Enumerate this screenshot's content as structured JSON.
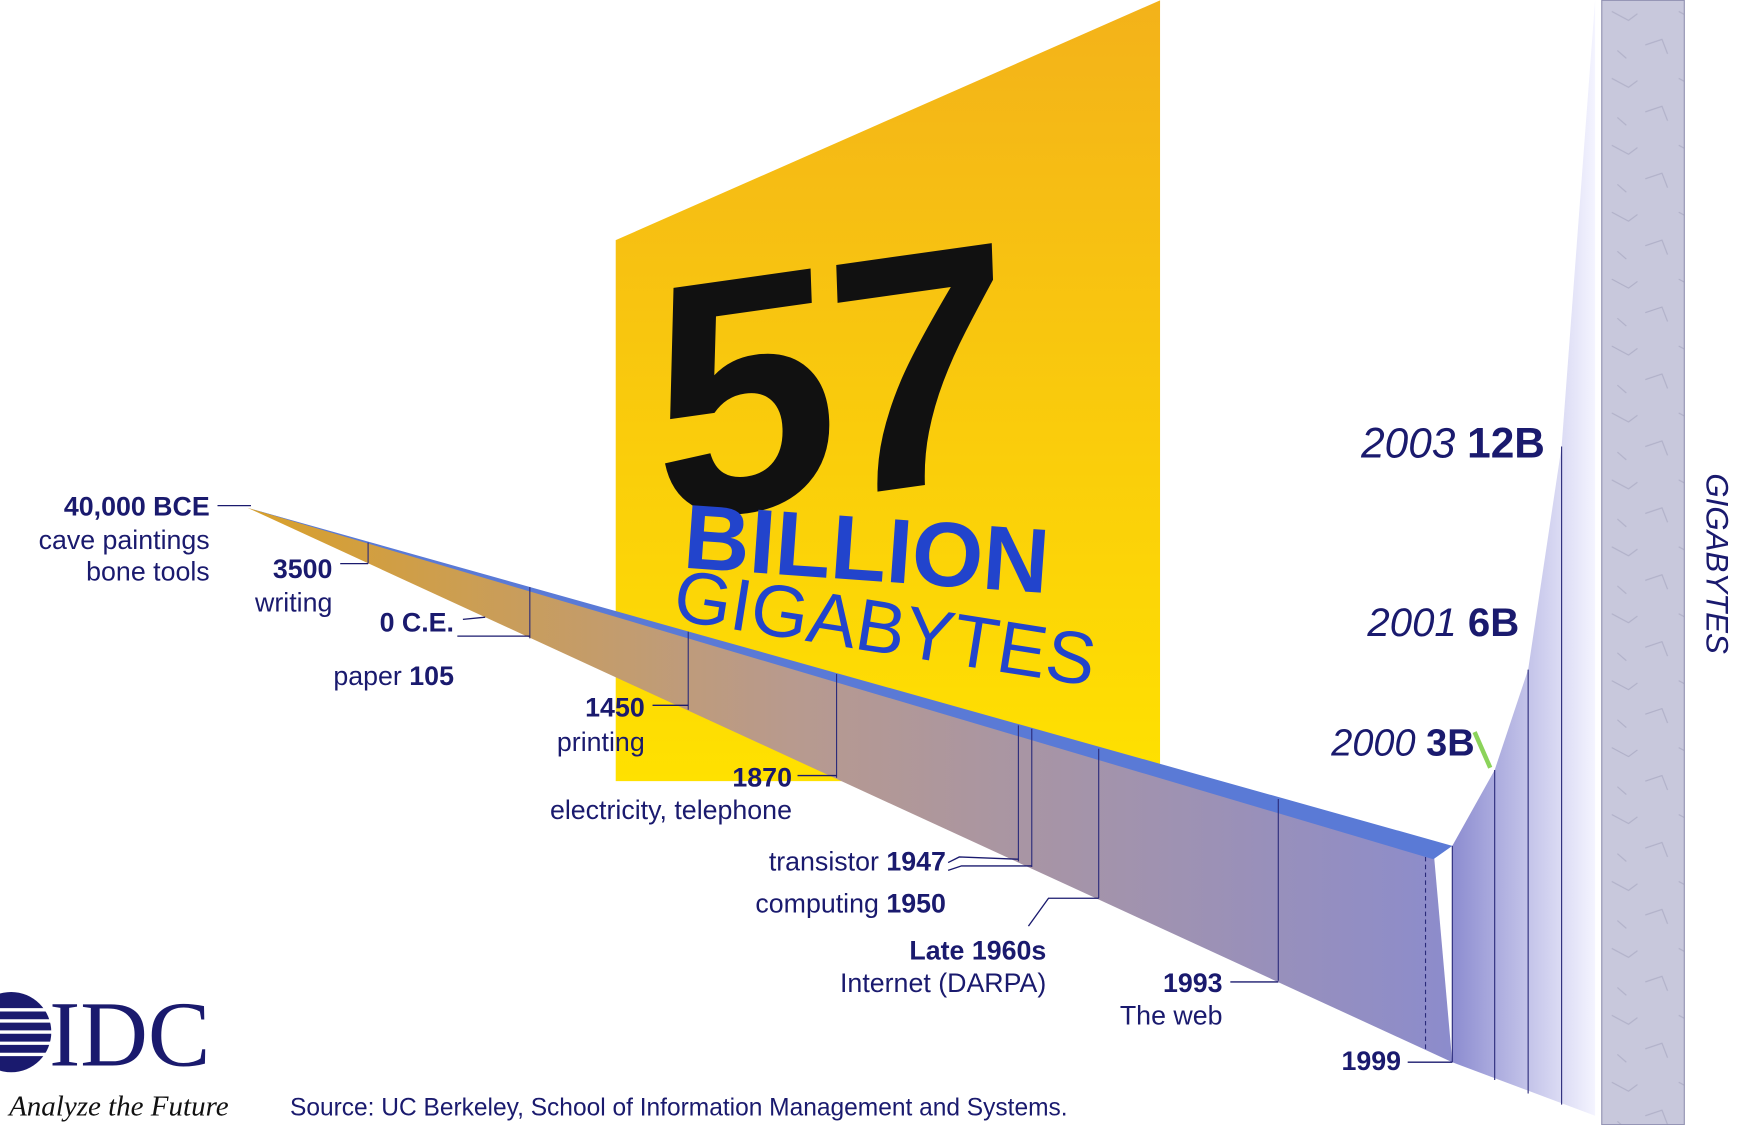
{
  "headline": {
    "number": "57",
    "line1": "BILLION",
    "line2": "GIGABYTES"
  },
  "axis_label": "GIGABYTES",
  "milestones": [
    {
      "date": "40,000 BCE",
      "event": "cave paintings",
      "event2": "bone tools"
    },
    {
      "date": "3500",
      "event": "writing"
    },
    {
      "date": "0 C.E."
    },
    {
      "event": "paper",
      "date": "105"
    },
    {
      "date": "1450",
      "event": "printing"
    },
    {
      "date": "1870",
      "event": "electricity, telephone"
    },
    {
      "event": "transistor",
      "date": "1947"
    },
    {
      "event": "computing",
      "date": "1950"
    },
    {
      "date": "Late 1960s",
      "event": "Internet (DARPA)"
    },
    {
      "date": "1993",
      "event": "The web"
    },
    {
      "date": "1999"
    }
  ],
  "growth": [
    {
      "year": "2000",
      "amount": "3B"
    },
    {
      "year": "2001",
      "amount": "6B"
    },
    {
      "year": "2003",
      "amount": "12B"
    }
  ],
  "source": "Source: UC Berkeley, School of Information Management and Systems.",
  "logo": {
    "name": "IDC",
    "tagline": "Analyze the Future"
  }
}
